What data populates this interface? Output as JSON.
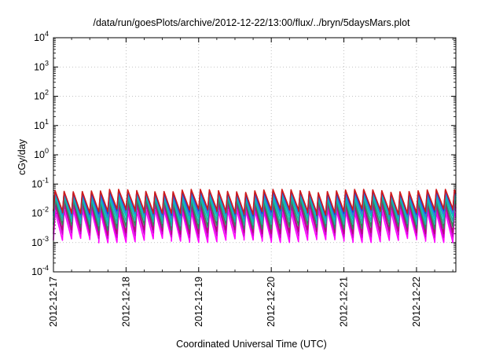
{
  "chart_data": {
    "type": "line",
    "title": "/data/run/goesPlots/archive/2012-12-22/13:00/flux/../bryn/5daysMars.plot",
    "xlabel": "Coordinated Universal Time (UTC)",
    "ylabel": "cGy/day",
    "y_scale": "log",
    "ylim": [
      0.0001,
      10000
    ],
    "y_ticks": [
      {
        "base": "10",
        "exp": "-4"
      },
      {
        "base": "10",
        "exp": "-3"
      },
      {
        "base": "10",
        "exp": "-2"
      },
      {
        "base": "10",
        "exp": "-1"
      },
      {
        "base": "10",
        "exp": "0"
      },
      {
        "base": "10",
        "exp": "1"
      },
      {
        "base": "10",
        "exp": "2"
      },
      {
        "base": "10",
        "exp": "3"
      },
      {
        "base": "10",
        "exp": "4"
      }
    ],
    "xlim": [
      "2012-12-17",
      "2012-12-22 13:00"
    ],
    "x_ticks": [
      "2012-12-17",
      "2012-12-18",
      "2012-12-19",
      "2012-12-20",
      "2012-12-21",
      "2012-12-22"
    ],
    "grid": true,
    "legend": "none",
    "sawtooth_period_hours": 3,
    "series": [
      {
        "color": "#ff00ff",
        "peak": 0.012,
        "trough": 0.0012
      },
      {
        "color": "#cc00cc",
        "peak": 0.018,
        "trough": 0.0018
      },
      {
        "color": "#b0107a",
        "peak": 0.022,
        "trough": 0.0024
      },
      {
        "color": "#2e8b57",
        "peak": 0.028,
        "trough": 0.0035
      },
      {
        "color": "#20b2aa",
        "peak": 0.035,
        "trough": 0.005
      },
      {
        "color": "#00bfbf",
        "peak": 0.042,
        "trough": 0.007
      },
      {
        "color": "#4169e1",
        "peak": 0.05,
        "trough": 0.009
      },
      {
        "color": "#1f3fcf",
        "peak": 0.055,
        "trough": 0.011
      },
      {
        "color": "#d11a1a",
        "peak": 0.06,
        "trough": 0.012
      }
    ]
  }
}
